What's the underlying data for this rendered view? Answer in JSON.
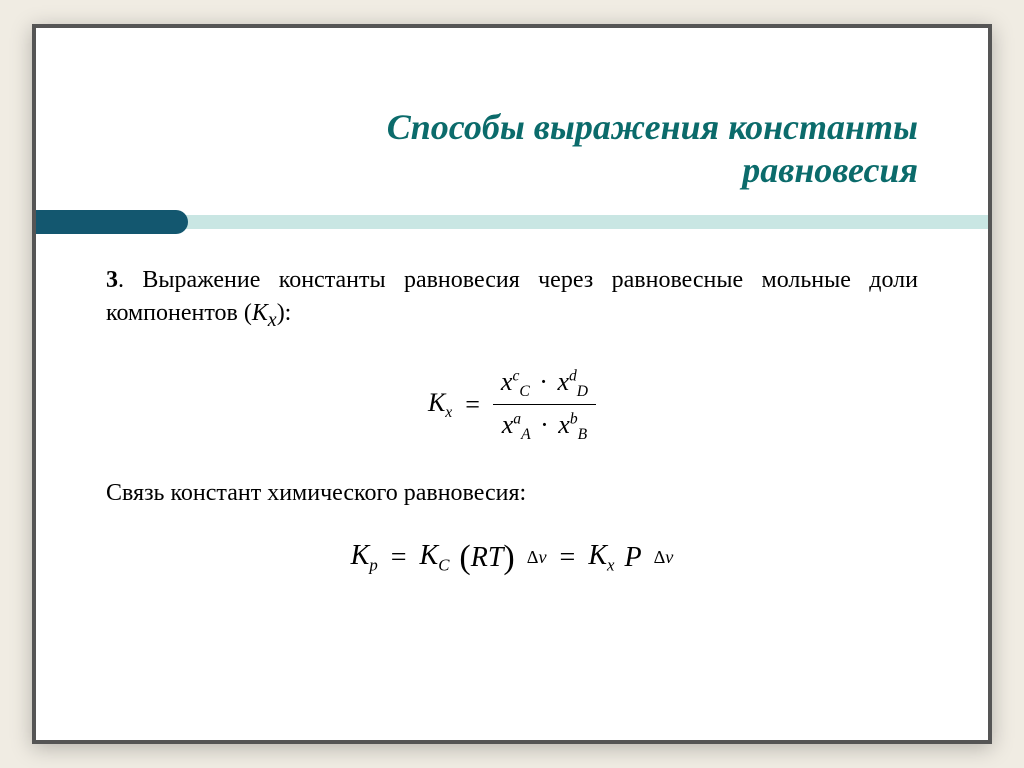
{
  "colors": {
    "title": "#0b6b6b",
    "bar_strip": "#c9e6e3",
    "bar_cap": "#13576f",
    "text": "#000000",
    "background": "#ffffff"
  },
  "title": {
    "line1": "Способы выражения константы",
    "line2": "равновесия",
    "fontsize": 36,
    "style": "bold italic"
  },
  "paragraph3": {
    "num": "3",
    "text_before": ". Выражение константы равновесия через равновесные мольные доли компонентов (",
    "symbol": "К",
    "sub": "x",
    "text_after": "):",
    "fontsize": 24
  },
  "equation1": {
    "lhs": {
      "base": "K",
      "sub": "x"
    },
    "rhs": {
      "type": "fraction",
      "num_terms": [
        {
          "base": "x",
          "sub": "C",
          "sup": "c"
        },
        {
          "base": "x",
          "sub": "D",
          "sup": "d"
        }
      ],
      "den_terms": [
        {
          "base": "x",
          "sub": "A",
          "sup": "a"
        },
        {
          "base": "x",
          "sub": "B",
          "sup": "b"
        }
      ],
      "operator": "·"
    }
  },
  "paragraph4": {
    "text": "Связь констант химического равновесия:",
    "fontsize": 24
  },
  "equation2": {
    "term1": {
      "base": "K",
      "sub": "p"
    },
    "term2": {
      "base": "K",
      "sub": "C"
    },
    "paren_inner": "RT",
    "exp": {
      "delta": "Δ",
      "var": "ν"
    },
    "term3": {
      "base": "K",
      "sub": "x"
    },
    "P": "P"
  }
}
